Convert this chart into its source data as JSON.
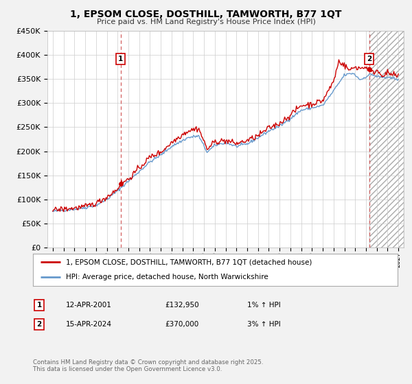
{
  "title": "1, EPSOM CLOSE, DOSTHILL, TAMWORTH, B77 1QT",
  "subtitle": "Price paid vs. HM Land Registry's House Price Index (HPI)",
  "background_color": "#f2f2f2",
  "plot_bg_color": "#ffffff",
  "ylim": [
    0,
    450000
  ],
  "yticks": [
    0,
    50000,
    100000,
    150000,
    200000,
    250000,
    300000,
    350000,
    400000,
    450000
  ],
  "xlim_start": 1994.5,
  "xlim_end": 2027.5,
  "grid_color": "#cccccc",
  "hpi_color": "#6699cc",
  "price_color": "#cc0000",
  "marker1_date": 2001.28,
  "marker2_date": 2024.29,
  "hatch_start": 2024.29,
  "legend_label_price": "1, EPSOM CLOSE, DOSTHILL, TAMWORTH, B77 1QT (detached house)",
  "legend_label_hpi": "HPI: Average price, detached house, North Warwickshire",
  "table_row1": [
    "1",
    "12-APR-2001",
    "£132,950",
    "1% ↑ HPI"
  ],
  "table_row2": [
    "2",
    "15-APR-2024",
    "£370,000",
    "3% ↑ HPI"
  ],
  "footer": "Contains HM Land Registry data © Crown copyright and database right 2025.\nThis data is licensed under the Open Government Licence v3.0."
}
